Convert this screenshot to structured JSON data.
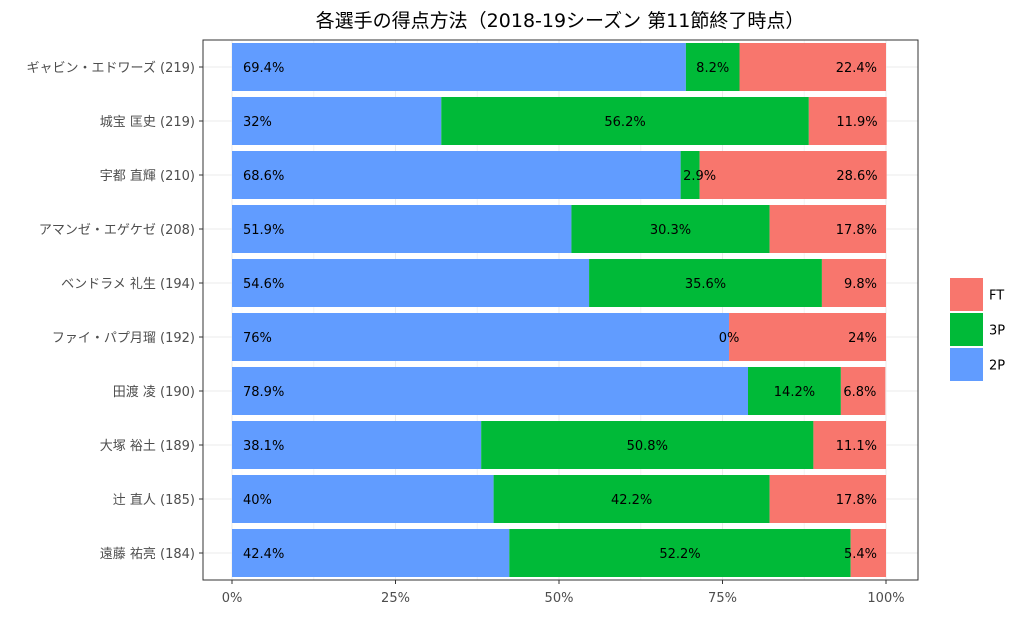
{
  "chart_data": {
    "type": "bar",
    "orientation": "horizontal",
    "stacked": true,
    "title": "各選手の得点方法（2018-19シーズン 第11節終了時点）",
    "xlabel": "",
    "ylabel": "",
    "xlim": [
      0,
      100
    ],
    "x_ticks": [
      "0%",
      "25%",
      "50%",
      "75%",
      "100%"
    ],
    "x_tick_values": [
      0,
      25,
      50,
      75,
      100
    ],
    "grid": true,
    "legend_position": "right",
    "categories": [
      "ギャビン・エドワーズ (219)",
      "城宝 匡史 (219)",
      "宇都 直輝 (210)",
      "アマンゼ・エゲケゼ (208)",
      "ベンドラメ 礼生 (194)",
      "ファイ・パプ月瑠 (192)",
      "田渡 凌 (190)",
      "大塚 裕土 (189)",
      "辻 直人 (185)",
      "遠藤 祐亮 (184)"
    ],
    "series": [
      {
        "name": "2P",
        "color": "#619CFF",
        "values": [
          69.4,
          32,
          68.6,
          51.9,
          54.6,
          76,
          78.9,
          38.1,
          40,
          42.4
        ],
        "labels": [
          "69.4%",
          "32%",
          "68.6%",
          "51.9%",
          "54.6%",
          "76%",
          "78.9%",
          "38.1%",
          "40%",
          "42.4%"
        ]
      },
      {
        "name": "3P",
        "color": "#00BA38",
        "values": [
          8.2,
          56.2,
          2.9,
          30.3,
          35.6,
          0,
          14.2,
          50.8,
          42.2,
          52.2
        ],
        "labels": [
          "8.2%",
          "56.2%",
          "2.9%",
          "30.3%",
          "35.6%",
          "0%",
          "14.2%",
          "50.8%",
          "42.2%",
          "52.2%"
        ]
      },
      {
        "name": "FT",
        "color": "#F8766D",
        "values": [
          22.4,
          11.9,
          28.6,
          17.8,
          9.8,
          24,
          6.8,
          11.1,
          17.8,
          5.4
        ],
        "labels": [
          "22.4%",
          "11.9%",
          "28.6%",
          "17.8%",
          "9.8%",
          "24%",
          "6.8%",
          "11.1%",
          "17.8%",
          "5.4%"
        ]
      }
    ],
    "legend_order": [
      "FT",
      "3P",
      "2P"
    ]
  }
}
